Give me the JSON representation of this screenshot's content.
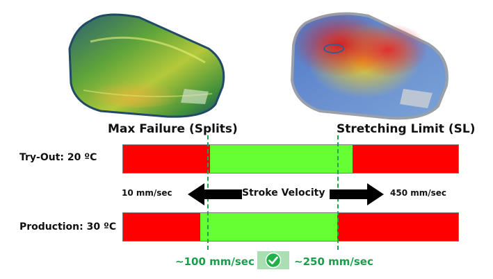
{
  "headings": {
    "left": "Max Failure (Splits)",
    "right": "Stretching Limit (SL)"
  },
  "rows": [
    {
      "label": "Try-Out: 20 ºC",
      "safe_start_fraction": 0.26,
      "safe_end_fraction": 0.685
    },
    {
      "label": "Production: 30 ºC",
      "safe_start_fraction": 0.23,
      "safe_end_fraction": 0.64
    }
  ],
  "velocity": {
    "label": "Stroke Velocity",
    "min_label": "10 mm/sec",
    "max_label": "450 mm/sec"
  },
  "window": {
    "low_label": "~100 mm/sec",
    "high_label": "~250 mm/sec",
    "check_icon": "check-icon"
  },
  "colors": {
    "fail_red": "#ff0000",
    "safe_green": "#66ff33",
    "dashed_green": "#1ea54a",
    "check_green": "#22b04b"
  }
}
